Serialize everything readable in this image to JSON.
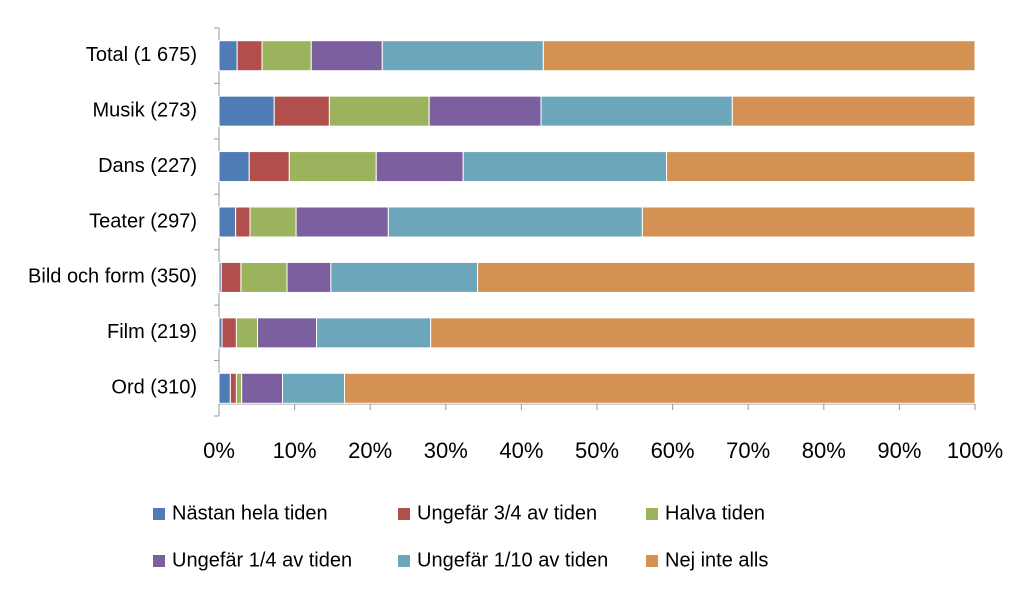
{
  "chart_data": {
    "type": "stacked-bar-horizontal",
    "categories": [
      "Total (1 675)",
      "Musik (273)",
      "Dans (227)",
      "Teater (297)",
      "Bild och form (350)",
      "Film (219)",
      "Ord (310)"
    ],
    "series": [
      {
        "name": "Nästan hela tiden",
        "color": "#4f7cb5",
        "values": [
          2.4,
          7.3,
          4.0,
          2.2,
          0.3,
          0.4,
          1.5
        ]
      },
      {
        "name": "Ungefär 3/4 av tiden",
        "color": "#b04f4b",
        "values": [
          3.3,
          7.3,
          5.3,
          1.9,
          2.6,
          1.9,
          0.8
        ]
      },
      {
        "name": "Halva tiden",
        "color": "#9ab35c",
        "values": [
          6.5,
          13.2,
          11.5,
          6.1,
          6.1,
          2.8,
          0.7
        ]
      },
      {
        "name": "Ungefär 1/4 av tiden",
        "color": "#7b5f9e",
        "values": [
          9.4,
          14.8,
          11.5,
          12.2,
          5.8,
          7.8,
          5.4
        ]
      },
      {
        "name": "Ungefär 1/10 av tiden",
        "color": "#6ba6ba",
        "values": [
          21.3,
          25.3,
          26.9,
          33.6,
          19.4,
          15.1,
          8.2
        ]
      },
      {
        "name": "Nej inte alls",
        "color": "#d39253",
        "values": [
          57.1,
          32.1,
          40.8,
          44.0,
          65.8,
          72.0,
          83.4
        ]
      }
    ],
    "xlim": [
      0,
      100
    ],
    "xticks": [
      {
        "value": 0,
        "label": "0%"
      },
      {
        "value": 10,
        "label": "10%"
      },
      {
        "value": 20,
        "label": "20%"
      },
      {
        "value": 30,
        "label": "30%"
      },
      {
        "value": 40,
        "label": "40%"
      },
      {
        "value": 50,
        "label": "50%"
      },
      {
        "value": 60,
        "label": "60%"
      },
      {
        "value": 70,
        "label": "70%"
      },
      {
        "value": 80,
        "label": "80%"
      },
      {
        "value": 90,
        "label": "90%"
      },
      {
        "value": 100,
        "label": "100%"
      }
    ]
  }
}
